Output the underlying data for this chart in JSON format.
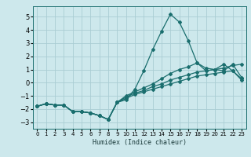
{
  "xlabel": "Humidex (Indice chaleur)",
  "xlim": [
    -0.5,
    23.5
  ],
  "ylim": [
    -3.5,
    5.8
  ],
  "bg_color": "#cde8ec",
  "grid_color": "#aacdd4",
  "line_color": "#1a6e6e",
  "xticks": [
    0,
    1,
    2,
    3,
    4,
    5,
    6,
    7,
    8,
    9,
    10,
    11,
    12,
    13,
    14,
    15,
    16,
    17,
    18,
    19,
    20,
    21,
    22,
    23
  ],
  "yticks": [
    -3,
    -2,
    -1,
    0,
    1,
    2,
    3,
    4,
    5
  ],
  "lines": [
    {
      "x": [
        0,
        1,
        2,
        3,
        4,
        5,
        6,
        7,
        8,
        9,
        10,
        11,
        12,
        13,
        14,
        15,
        16,
        17,
        18,
        19,
        20,
        21,
        22,
        23
      ],
      "y": [
        -1.8,
        -1.6,
        -1.7,
        -1.7,
        -2.2,
        -2.2,
        -2.3,
        -2.5,
        -2.8,
        -1.5,
        -1.3,
        -0.5,
        0.9,
        2.5,
        3.9,
        5.2,
        4.6,
        3.2,
        1.5,
        0.9,
        1.0,
        1.4,
        0.9,
        0.3
      ]
    },
    {
      "x": [
        0,
        1,
        2,
        3,
        4,
        5,
        6,
        7,
        8,
        9,
        10,
        11,
        12,
        13,
        14,
        15,
        16,
        17,
        18,
        19,
        20,
        21,
        22,
        23
      ],
      "y": [
        -1.8,
        -1.6,
        -1.7,
        -1.7,
        -2.2,
        -2.2,
        -2.3,
        -2.5,
        -2.8,
        -1.5,
        -1.0,
        -0.7,
        -0.4,
        -0.1,
        0.3,
        0.7,
        1.0,
        1.2,
        1.5,
        1.1,
        1.0,
        0.9,
        1.4,
        0.4
      ]
    },
    {
      "x": [
        0,
        1,
        2,
        3,
        4,
        5,
        6,
        7,
        8,
        9,
        10,
        11,
        12,
        13,
        14,
        15,
        16,
        17,
        18,
        19,
        20,
        21,
        22,
        23
      ],
      "y": [
        -1.8,
        -1.6,
        -1.7,
        -1.7,
        -2.2,
        -2.2,
        -2.3,
        -2.5,
        -2.8,
        -1.5,
        -1.1,
        -0.8,
        -0.6,
        -0.3,
        -0.1,
        0.2,
        0.4,
        0.6,
        0.8,
        0.9,
        1.0,
        1.1,
        1.3,
        1.4
      ]
    },
    {
      "x": [
        0,
        1,
        2,
        3,
        4,
        5,
        6,
        7,
        8,
        9,
        10,
        11,
        12,
        13,
        14,
        15,
        16,
        17,
        18,
        19,
        20,
        21,
        22,
        23
      ],
      "y": [
        -1.8,
        -1.6,
        -1.7,
        -1.7,
        -2.2,
        -2.2,
        -2.3,
        -2.5,
        -2.8,
        -1.5,
        -1.2,
        -0.9,
        -0.7,
        -0.5,
        -0.3,
        -0.1,
        0.1,
        0.3,
        0.5,
        0.6,
        0.7,
        0.8,
        0.9,
        0.2
      ]
    }
  ]
}
